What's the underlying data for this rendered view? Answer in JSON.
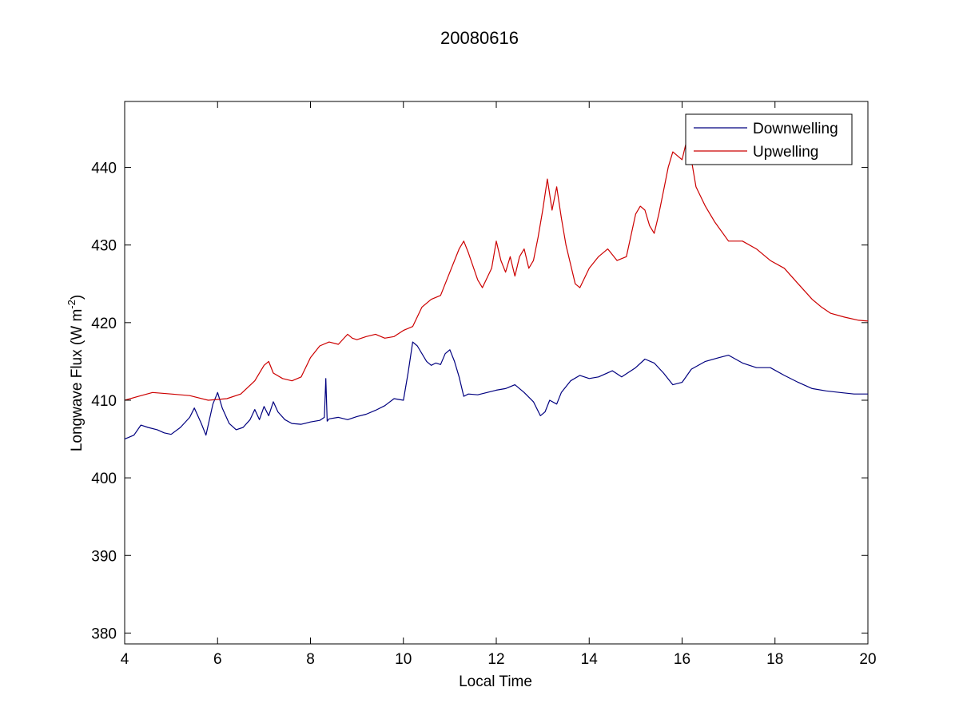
{
  "chart_data": {
    "type": "line",
    "title": "20080616",
    "xlabel": "Local Time",
    "ylabel_prefix": "Longwave Flux (W m",
    "ylabel_exponent": "-2",
    "ylabel_suffix": ")",
    "xlim": [
      4,
      20
    ],
    "ylim": [
      378.6,
      448.5
    ],
    "xticks": [
      4,
      6,
      8,
      10,
      12,
      14,
      16,
      18,
      20
    ],
    "yticks": [
      380,
      390,
      400,
      410,
      420,
      430,
      440
    ],
    "grid": false,
    "legend_position": "top-right",
    "series": [
      {
        "name": "Downwelling",
        "color": "#00007f",
        "x": [
          4.0,
          4.2,
          4.35,
          4.5,
          4.7,
          4.85,
          5.0,
          5.2,
          5.4,
          5.5,
          5.65,
          5.75,
          5.9,
          6.0,
          6.1,
          6.25,
          6.4,
          6.55,
          6.7,
          6.8,
          6.9,
          7.0,
          7.1,
          7.2,
          7.3,
          7.45,
          7.6,
          7.8,
          8.0,
          8.2,
          8.3,
          8.33,
          8.36,
          8.4,
          8.6,
          8.8,
          9.0,
          9.2,
          9.4,
          9.6,
          9.8,
          10.0,
          10.1,
          10.2,
          10.3,
          10.5,
          10.6,
          10.7,
          10.8,
          10.9,
          11.0,
          11.1,
          11.2,
          11.3,
          11.4,
          11.6,
          11.8,
          12.0,
          12.2,
          12.4,
          12.6,
          12.8,
          12.95,
          13.05,
          13.15,
          13.3,
          13.4,
          13.6,
          13.8,
          14.0,
          14.2,
          14.5,
          14.7,
          15.0,
          15.2,
          15.4,
          15.6,
          15.8,
          16.0,
          16.2,
          16.5,
          16.8,
          17.0,
          17.3,
          17.6,
          17.9,
          18.2,
          18.5,
          18.8,
          19.1,
          19.4,
          19.7,
          20.0
        ],
        "values": [
          405.0,
          405.5,
          406.8,
          406.5,
          406.2,
          405.8,
          405.6,
          406.5,
          407.8,
          409.0,
          407.0,
          405.5,
          409.5,
          411.0,
          409.0,
          407.0,
          406.2,
          406.5,
          407.5,
          408.8,
          407.5,
          409.2,
          408.0,
          409.8,
          408.5,
          407.5,
          407.0,
          406.9,
          407.2,
          407.4,
          407.8,
          412.8,
          407.3,
          407.6,
          407.8,
          407.5,
          407.9,
          408.2,
          408.7,
          409.3,
          410.2,
          410.0,
          413.5,
          417.5,
          417.0,
          415.0,
          414.5,
          414.8,
          414.6,
          416.0,
          416.5,
          415.0,
          413.0,
          410.5,
          410.8,
          410.7,
          411.0,
          411.3,
          411.5,
          412.0,
          411.0,
          409.8,
          408.0,
          408.5,
          410.0,
          409.5,
          411.0,
          412.5,
          413.2,
          412.8,
          413.0,
          413.8,
          413.0,
          414.2,
          415.3,
          414.8,
          413.5,
          412.0,
          412.3,
          414.0,
          415.0,
          415.5,
          415.8,
          414.8,
          414.2,
          414.2,
          413.2,
          412.3,
          411.5,
          411.2,
          411.0,
          410.8,
          410.8
        ]
      },
      {
        "name": "Upwelling",
        "color": "#cc0000",
        "x": [
          4.0,
          4.3,
          4.6,
          5.0,
          5.4,
          5.8,
          6.2,
          6.5,
          6.8,
          7.0,
          7.1,
          7.2,
          7.4,
          7.6,
          7.8,
          8.0,
          8.2,
          8.4,
          8.6,
          8.8,
          8.9,
          9.0,
          9.2,
          9.4,
          9.6,
          9.8,
          10.0,
          10.2,
          10.4,
          10.6,
          10.8,
          11.0,
          11.2,
          11.3,
          11.4,
          11.6,
          11.7,
          11.9,
          12.0,
          12.1,
          12.2,
          12.3,
          12.4,
          12.5,
          12.6,
          12.7,
          12.8,
          12.9,
          13.0,
          13.1,
          13.2,
          13.3,
          13.4,
          13.5,
          13.6,
          13.7,
          13.8,
          14.0,
          14.2,
          14.4,
          14.6,
          14.8,
          15.0,
          15.1,
          15.2,
          15.3,
          15.4,
          15.5,
          15.6,
          15.7,
          15.8,
          16.0,
          16.1,
          16.2,
          16.3,
          16.5,
          16.7,
          17.0,
          17.3,
          17.6,
          17.9,
          18.2,
          18.5,
          18.8,
          19.0,
          19.2,
          19.5,
          19.8,
          20.0
        ],
        "values": [
          410.0,
          410.5,
          411.0,
          410.8,
          410.6,
          410.0,
          410.2,
          410.8,
          412.5,
          414.5,
          415.0,
          413.5,
          412.8,
          412.5,
          413.0,
          415.5,
          417.0,
          417.5,
          417.2,
          418.5,
          418.0,
          417.8,
          418.2,
          418.5,
          418.0,
          418.2,
          419.0,
          419.5,
          422.0,
          423.0,
          423.5,
          426.5,
          429.5,
          430.5,
          429.0,
          425.5,
          424.5,
          427.0,
          430.5,
          428.0,
          426.5,
          428.5,
          426.0,
          428.5,
          429.5,
          427.0,
          428.0,
          431.0,
          434.5,
          438.5,
          434.5,
          437.5,
          433.5,
          430.0,
          427.5,
          425.0,
          424.5,
          427.0,
          428.5,
          429.5,
          428.0,
          428.5,
          434.0,
          435.0,
          434.5,
          432.5,
          431.5,
          434.0,
          437.0,
          440.0,
          442.0,
          441.0,
          443.5,
          441.0,
          437.5,
          435.0,
          433.0,
          430.5,
          430.5,
          429.5,
          428.0,
          427.0,
          425.0,
          423.0,
          422.0,
          421.2,
          420.7,
          420.3,
          420.2
        ]
      }
    ]
  }
}
